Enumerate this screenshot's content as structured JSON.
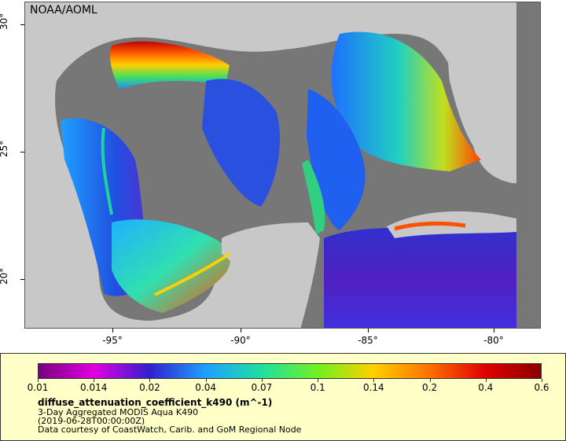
{
  "map": {
    "credit": "NOAA/AOML",
    "lon_ticks": [
      "-95°",
      "-90°",
      "-85°",
      "-80°"
    ],
    "lat_ticks": [
      "30°",
      "25°",
      "20°"
    ],
    "colors": {
      "land": "#c8c8c8",
      "no_data": "#777777"
    }
  },
  "legend": {
    "ticks": [
      "0.01",
      "0.014",
      "0.02",
      "0.04",
      "0.07",
      "0.1",
      "0.14",
      "0.2",
      "0.4",
      "0.6"
    ],
    "variable": "diffuse_attenuation_coefficient_k490 (m^-1)",
    "line1": "3-Day Aggregated MODIS Aqua K490",
    "line2": "(2019-06-28T00:00:00Z)",
    "line3": "Data courtesy of CoastWatch, Carib. and GoM Regional Node",
    "colormap": [
      "#7a0080",
      "#e000e0",
      "#3020d0",
      "#1fa0ff",
      "#20e0a0",
      "#70f020",
      "#ffd000",
      "#ff7000",
      "#e00000",
      "#8b0000"
    ]
  }
}
